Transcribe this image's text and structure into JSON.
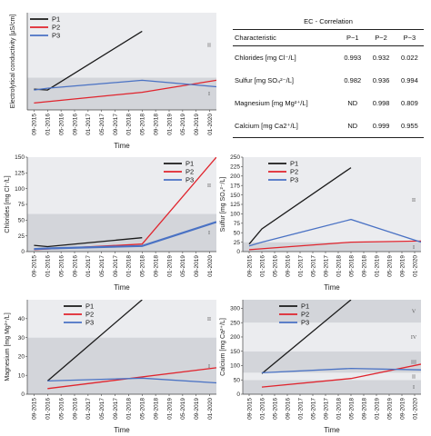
{
  "table": {
    "title": "EC - Correlation",
    "columns": [
      "Characteristic",
      "P−1",
      "P−2",
      "P−3"
    ],
    "rows": [
      [
        "Chlorides [mg Cl⁻/L]",
        "0.993",
        "0.932",
        "0.022"
      ],
      [
        "Sulfur [mg SO₄²⁻/L]",
        "0.982",
        "0.936",
        "0.994"
      ],
      [
        "Magnesium [mg Mg²⁺/L]",
        "ND",
        "0.998",
        "0.809"
      ],
      [
        "Calcium [mg Ca2⁺/L]",
        "ND",
        "0.999",
        "0.955"
      ]
    ]
  },
  "colors": {
    "P1": "#1a1a1a",
    "P2": "#e0242d",
    "P3": "#4a72c4",
    "band_dark": "#d3d5da",
    "band_light": "#ebecef"
  },
  "chart_data": [
    {
      "id": "ec",
      "type": "line",
      "ylabel": "Electrolytical conductivity [µS/cm]",
      "xlabel": "Time",
      "categories": [
        "09-2015",
        "01-2016",
        "05-2016",
        "09-2016",
        "01-2017",
        "05-2017",
        "09-2017",
        "01-2018",
        "05-2018",
        "09-2018",
        "01-2019",
        "05-2019",
        "09-2019",
        "01-2020"
      ],
      "yticks": [],
      "ylim": [
        0,
        2100
      ],
      "zones": [
        {
          "from": 0,
          "to": 700,
          "label": "I"
        },
        {
          "from": 700,
          "to": 2100,
          "label": "II"
        }
      ],
      "series": [
        {
          "name": "P1",
          "x": [
            0,
            1,
            8
          ],
          "values": [
            450,
            430,
            1700
          ]
        },
        {
          "name": "P2",
          "x": [
            0,
            8,
            13.5
          ],
          "values": [
            150,
            380,
            640
          ]
        },
        {
          "name": "P3",
          "x": [
            0,
            1,
            8,
            13.5
          ],
          "values": [
            430,
            470,
            640,
            500
          ]
        }
      ]
    },
    {
      "id": "chlorides",
      "type": "line",
      "ylabel": "Chlorides [mg Cl⁻/L]",
      "xlabel": "Time",
      "categories": [
        "09-2015",
        "01-2016",
        "05-2016",
        "09-2016",
        "01-2017",
        "05-2017",
        "09-2017",
        "01-2018",
        "05-2018",
        "09-2018",
        "01-2019",
        "05-2019",
        "09-2019",
        "01-2020"
      ],
      "yticks": [
        0,
        25,
        50,
        75,
        100,
        125,
        150
      ],
      "ylim": [
        0,
        150
      ],
      "zones": [
        {
          "from": 0,
          "to": 60,
          "label": "I"
        },
        {
          "from": 60,
          "to": 150,
          "label": "II"
        }
      ],
      "series": [
        {
          "name": "P1",
          "x": [
            0,
            1,
            8
          ],
          "values": [
            10,
            8,
            22
          ]
        },
        {
          "name": "P2",
          "x": [
            0,
            8,
            13.5
          ],
          "values": [
            3,
            12,
            150
          ]
        },
        {
          "name": "P3",
          "x": [
            0,
            1,
            8,
            13.5
          ],
          "values": [
            4,
            5,
            9,
            47
          ]
        }
      ]
    },
    {
      "id": "sulfur",
      "type": "line",
      "ylabel": "Sulfur [mg SO₄²⁻/L]",
      "xlabel": "Time",
      "categories": [
        "09-2015",
        "01-2016",
        "05-2016",
        "09-2016",
        "01-2017",
        "05-2017",
        "09-2017",
        "01-2018",
        "05-2018",
        "09-2018",
        "01-2019",
        "05-2019",
        "09-2019",
        "01-2020"
      ],
      "yticks": [
        0,
        25,
        50,
        75,
        100,
        125,
        150,
        175,
        200,
        225,
        250
      ],
      "ylim": [
        0,
        250
      ],
      "zones": [
        {
          "from": 0,
          "to": 25,
          "label": "I"
        },
        {
          "from": 25,
          "to": 250,
          "label": "II"
        }
      ],
      "series": [
        {
          "name": "P1",
          "x": [
            0,
            1,
            8
          ],
          "values": [
            20,
            60,
            222
          ]
        },
        {
          "name": "P2",
          "x": [
            0,
            8,
            13.5
          ],
          "values": [
            5,
            25,
            28
          ]
        },
        {
          "name": "P3",
          "x": [
            0,
            1,
            8,
            13.5
          ],
          "values": [
            15,
            25,
            85,
            25
          ]
        }
      ]
    },
    {
      "id": "magnesium",
      "type": "line",
      "ylabel": "Magnesium [mg Mg²⁺/L]",
      "xlabel": "Time",
      "categories": [
        "09-2015",
        "01-2016",
        "05-2016",
        "09-2016",
        "01-2017",
        "05-2017",
        "09-2017",
        "01-2018",
        "05-2018",
        "09-2018",
        "01-2019",
        "05-2019",
        "09-2019",
        "01-2020"
      ],
      "yticks": [
        0,
        10,
        20,
        30,
        40
      ],
      "ylim": [
        0,
        50
      ],
      "zones": [
        {
          "from": 0,
          "to": 30,
          "label": "I"
        },
        {
          "from": 30,
          "to": 50,
          "label": "II"
        }
      ],
      "series": [
        {
          "name": "P1",
          "x": [
            1,
            8
          ],
          "values": [
            7,
            50
          ]
        },
        {
          "name": "P2",
          "x": [
            1,
            13.5
          ],
          "values": [
            3,
            14
          ]
        },
        {
          "name": "P3",
          "x": [
            1,
            8,
            13.5
          ],
          "values": [
            7,
            8.5,
            6
          ]
        }
      ]
    },
    {
      "id": "calcium",
      "type": "line",
      "ylabel": "Calcium [mg Ca²⁺/L]",
      "xlabel": "Time",
      "categories": [
        "09-2015",
        "01-2016",
        "05-2016",
        "09-2016",
        "01-2017",
        "05-2017",
        "09-2017",
        "01-2018",
        "05-2018",
        "09-2018",
        "01-2019",
        "05-2019",
        "09-2019",
        "01-2020"
      ],
      "yticks": [
        0,
        50,
        100,
        150,
        200,
        250,
        300
      ],
      "ylim": [
        0,
        330
      ],
      "zones": [
        {
          "from": 0,
          "to": 50,
          "label": "I"
        },
        {
          "from": 50,
          "to": 75,
          "label": "II"
        },
        {
          "from": 75,
          "to": 150,
          "label": "III"
        },
        {
          "from": 150,
          "to": 250,
          "label": "IV"
        },
        {
          "from": 250,
          "to": 330,
          "label": "V"
        }
      ],
      "series": [
        {
          "name": "P1",
          "x": [
            1,
            8
          ],
          "values": [
            72,
            330
          ]
        },
        {
          "name": "P2",
          "x": [
            1,
            8,
            13.5
          ],
          "values": [
            25,
            55,
            105
          ]
        },
        {
          "name": "P3",
          "x": [
            1,
            8,
            13.5
          ],
          "values": [
            75,
            90,
            85
          ]
        }
      ]
    }
  ]
}
